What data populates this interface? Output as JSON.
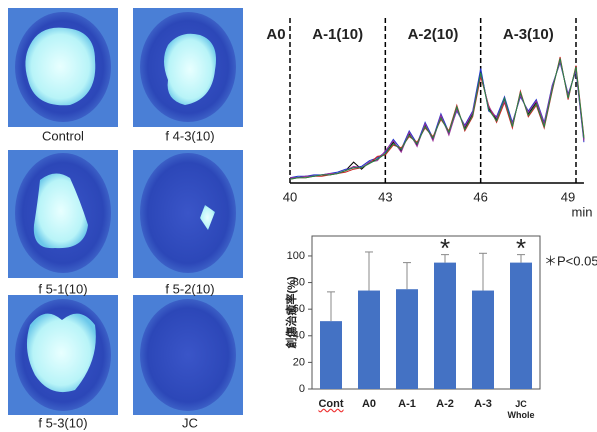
{
  "images": [
    {
      "caption": "Control"
    },
    {
      "caption": "f 4-3(10)"
    },
    {
      "caption": "f 5-1(10)"
    },
    {
      "caption": "f 5-2(10)"
    },
    {
      "caption": "f 5-3(10)"
    },
    {
      "caption": "JC"
    }
  ],
  "chart_data": [
    {
      "type": "line",
      "xlabel": "min",
      "regions": [
        {
          "label": "A0"
        },
        {
          "label": "A-1(10)"
        },
        {
          "label": "A-2(10)"
        },
        {
          "label": "A-3(10)"
        }
      ],
      "x": [
        40,
        40.25,
        40.5,
        40.75,
        41,
        41.25,
        41.5,
        41.75,
        42,
        42.25,
        42.5,
        42.75,
        43,
        43.25,
        43.5,
        43.75,
        44,
        44.25,
        44.5,
        44.75,
        45,
        45.25,
        45.5,
        45.75,
        46,
        46.25,
        46.5,
        46.75,
        47,
        47.25,
        47.5,
        47.75,
        48,
        48.25,
        48.5,
        48.75,
        49,
        49.25
      ],
      "xlim": [
        40,
        49.25
      ],
      "xticks": [
        40,
        43,
        46,
        49
      ],
      "ylim": [
        0,
        100
      ],
      "series": [
        {
          "color": "#000000",
          "values": [
            3,
            3,
            4,
            4,
            5,
            5,
            6,
            8,
            14,
            9,
            14,
            16,
            20,
            28,
            22,
            34,
            26,
            40,
            30,
            46,
            34,
            52,
            38,
            48,
            78,
            52,
            44,
            58,
            40,
            62,
            48,
            56,
            40,
            66,
            86,
            60,
            80,
            30
          ]
        },
        {
          "color": "#2233cc",
          "values": [
            3,
            4,
            4,
            5,
            5,
            6,
            7,
            9,
            10,
            11,
            15,
            17,
            21,
            30,
            23,
            36,
            27,
            42,
            31,
            48,
            35,
            50,
            40,
            50,
            80,
            50,
            46,
            60,
            42,
            60,
            50,
            58,
            42,
            68,
            84,
            62,
            78,
            28
          ]
        },
        {
          "color": "#cc2222",
          "values": [
            2,
            3,
            3,
            4,
            4,
            5,
            6,
            7,
            9,
            10,
            13,
            18,
            19,
            26,
            24,
            32,
            28,
            38,
            32,
            44,
            36,
            54,
            36,
            46,
            74,
            54,
            42,
            56,
            38,
            64,
            46,
            54,
            38,
            64,
            88,
            58,
            82,
            32
          ]
        },
        {
          "color": "#993399",
          "values": [
            3,
            3,
            4,
            4,
            5,
            6,
            6,
            8,
            11,
            10,
            14,
            15,
            22,
            29,
            21,
            35,
            25,
            41,
            29,
            47,
            33,
            51,
            39,
            49,
            76,
            53,
            45,
            57,
            41,
            61,
            49,
            57,
            41,
            67,
            85,
            61,
            79,
            29
          ]
        },
        {
          "color": "#228844",
          "values": [
            2,
            3,
            3,
            4,
            5,
            5,
            6,
            8,
            10,
            10,
            13,
            16,
            20,
            27,
            23,
            33,
            27,
            39,
            31,
            45,
            35,
            53,
            37,
            47,
            77,
            51,
            43,
            59,
            39,
            63,
            47,
            55,
            39,
            65,
            87,
            59,
            81,
            31
          ]
        }
      ]
    },
    {
      "type": "bar",
      "ylabel": "創傷治癒率(%)",
      "categories": [
        "Cont",
        "A0",
        "A-1",
        "A-2",
        "A-3",
        "JC Whole"
      ],
      "values": [
        51,
        74,
        75,
        95,
        74,
        95
      ],
      "errors": [
        22,
        29,
        20,
        6,
        28,
        6
      ],
      "color": "#4472c4",
      "ylim": [
        0,
        115
      ],
      "yticks": [
        0,
        20,
        40,
        60,
        80,
        100
      ],
      "annotations": [
        {
          "text": "*",
          "x": "A-2"
        },
        {
          "text": "*",
          "x": "JC Whole"
        }
      ],
      "note": "＊P<0.05"
    }
  ]
}
